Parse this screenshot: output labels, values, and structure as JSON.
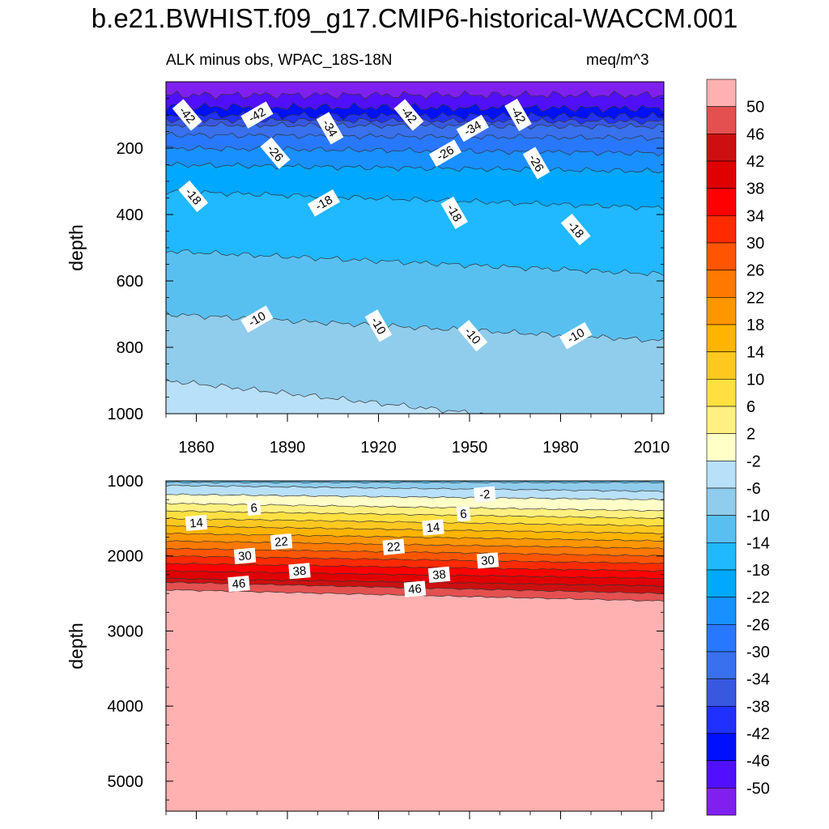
{
  "figure": {
    "title": "b.e21.BWHIST.f09_g17.CMIP6-historical-WACCM.001",
    "left_subtitle": "ALK minus obs, WPAC_18S-18N",
    "right_subtitle": "meq/m^3"
  },
  "chart_data": [
    {
      "type": "heatmap",
      "panel": "upper",
      "xlabel": "",
      "ylabel": "depth",
      "xlim": [
        1850,
        2014
      ],
      "ylim": [
        1000,
        0
      ],
      "x_ticks": [
        "1860",
        "1890",
        "1920",
        "1950",
        "1980",
        "2010"
      ],
      "y_ticks": [
        "200",
        "400",
        "600",
        "800",
        "1000"
      ],
      "contour_boundaries": [
        {
          "level": -50,
          "depth_start": 40,
          "depth_end": 40
        },
        {
          "level": -46,
          "depth_start": 75,
          "depth_end": 80
        },
        {
          "level": -42,
          "depth_start": 100,
          "depth_end": 105
        },
        {
          "level": -38,
          "depth_start": 115,
          "depth_end": 120
        },
        {
          "level": -34,
          "depth_start": 130,
          "depth_end": 135
        },
        {
          "level": -30,
          "depth_start": 160,
          "depth_end": 170
        },
        {
          "level": -26,
          "depth_start": 200,
          "depth_end": 215
        },
        {
          "level": -22,
          "depth_start": 250,
          "depth_end": 270
        },
        {
          "level": -18,
          "depth_start": 330,
          "depth_end": 380
        },
        {
          "level": -14,
          "depth_start": 510,
          "depth_end": 580
        },
        {
          "level": -10,
          "depth_start": 700,
          "depth_end": 780
        },
        {
          "level": -6,
          "depth_start": 900,
          "depth_end": 1060
        }
      ],
      "contour_labels": [
        {
          "text": "-42",
          "year": 1857,
          "depth": 100
        },
        {
          "text": "-42",
          "year": 1880,
          "depth": 100
        },
        {
          "text": "-34",
          "year": 1904,
          "depth": 140
        },
        {
          "text": "-42",
          "year": 1930,
          "depth": 100
        },
        {
          "text": "-34",
          "year": 1951,
          "depth": 140
        },
        {
          "text": "-42",
          "year": 1966,
          "depth": 100
        },
        {
          "text": "-26",
          "year": 1886,
          "depth": 215
        },
        {
          "text": "-26",
          "year": 1942,
          "depth": 215
        },
        {
          "text": "-26",
          "year": 1972,
          "depth": 245
        },
        {
          "text": "-18",
          "year": 1859,
          "depth": 345
        },
        {
          "text": "-18",
          "year": 1902,
          "depth": 365
        },
        {
          "text": "-18",
          "year": 1945,
          "depth": 395
        },
        {
          "text": "-18",
          "year": 1985,
          "depth": 445
        },
        {
          "text": "-10",
          "year": 1880,
          "depth": 715
        },
        {
          "text": "-10",
          "year": 1920,
          "depth": 735
        },
        {
          "text": "-10",
          "year": 1951,
          "depth": 765
        },
        {
          "text": "-10",
          "year": 1985,
          "depth": 765
        }
      ]
    },
    {
      "type": "heatmap",
      "panel": "lower",
      "xlabel": "",
      "ylabel": "depth",
      "xlim": [
        1850,
        2014
      ],
      "ylim": [
        5400,
        1000
      ],
      "y_ticks": [
        "1000",
        "2000",
        "3000",
        "4000",
        "5000"
      ],
      "contour_boundaries": [
        {
          "level": -10,
          "depth_start": 1020,
          "depth_end": 1020
        },
        {
          "level": -6,
          "depth_start": 1060,
          "depth_end": 1140
        },
        {
          "level": -2,
          "depth_start": 1180,
          "depth_end": 1250
        },
        {
          "level": 2,
          "depth_start": 1300,
          "depth_end": 1400
        },
        {
          "level": 6,
          "depth_start": 1400,
          "depth_end": 1500
        },
        {
          "level": 10,
          "depth_start": 1500,
          "depth_end": 1600
        },
        {
          "level": 14,
          "depth_start": 1600,
          "depth_end": 1700
        },
        {
          "level": 18,
          "depth_start": 1700,
          "depth_end": 1800
        },
        {
          "level": 22,
          "depth_start": 1800,
          "depth_end": 1900
        },
        {
          "level": 26,
          "depth_start": 1900,
          "depth_end": 2000
        },
        {
          "level": 30,
          "depth_start": 2000,
          "depth_end": 2100
        },
        {
          "level": 34,
          "depth_start": 2100,
          "depth_end": 2200
        },
        {
          "level": 38,
          "depth_start": 2200,
          "depth_end": 2300
        },
        {
          "level": 42,
          "depth_start": 2300,
          "depth_end": 2400
        },
        {
          "level": 46,
          "depth_start": 2350,
          "depth_end": 2500
        },
        {
          "level": 50,
          "depth_start": 2450,
          "depth_end": 2600
        }
      ],
      "contour_labels": [
        {
          "text": "6",
          "year": 1879,
          "depth": 1360
        },
        {
          "text": "14",
          "year": 1860,
          "depth": 1560
        },
        {
          "text": "22",
          "year": 1888,
          "depth": 1810
        },
        {
          "text": "30",
          "year": 1876,
          "depth": 2000
        },
        {
          "text": "38",
          "year": 1894,
          "depth": 2200
        },
        {
          "text": "46",
          "year": 1874,
          "depth": 2370
        },
        {
          "text": "-2",
          "year": 1955,
          "depth": 1180
        },
        {
          "text": "6",
          "year": 1948,
          "depth": 1440
        },
        {
          "text": "14",
          "year": 1938,
          "depth": 1620
        },
        {
          "text": "22",
          "year": 1925,
          "depth": 1880
        },
        {
          "text": "30",
          "year": 1956,
          "depth": 2060
        },
        {
          "text": "38",
          "year": 1940,
          "depth": 2250
        },
        {
          "text": "46",
          "year": 1932,
          "depth": 2440
        }
      ]
    }
  ],
  "colorbar": {
    "labels": [
      "50",
      "46",
      "42",
      "38",
      "34",
      "30",
      "26",
      "22",
      "18",
      "14",
      "10",
      "6",
      "2",
      "-2",
      "-6",
      "-10",
      "-14",
      "-18",
      "-22",
      "-26",
      "-30",
      "-34",
      "-38",
      "-42",
      "-46",
      "-50"
    ],
    "colors": [
      "#ffb0b0",
      "#e45050",
      "#cc1010",
      "#e00000",
      "#ff0000",
      "#ff2a00",
      "#ff5500",
      "#ff7800",
      "#ff9600",
      "#ffb400",
      "#ffc820",
      "#ffe040",
      "#fff080",
      "#ffffc8",
      "#b8e0f8",
      "#90ccec",
      "#58c0f0",
      "#20b8ff",
      "#00a8ff",
      "#1890ff",
      "#2878ff",
      "#3870ee",
      "#3858e0",
      "#2030ff",
      "#0010ff",
      "#5010ff",
      "#8020f0"
    ]
  }
}
